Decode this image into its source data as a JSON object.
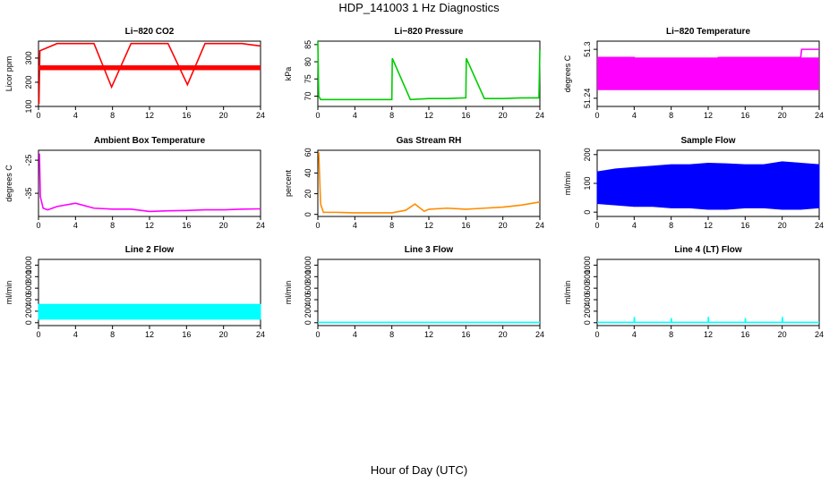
{
  "title": "HDP_141003  1 Hz Diagnostics",
  "xlabel": "Hour of Day (UTC)",
  "chart_data": [
    {
      "type": "line",
      "title": "Li−820 CO2",
      "ylabel": "Licor ppm",
      "color": "#ff0000",
      "xlim": [
        0,
        24
      ],
      "ylim": [
        100,
        370
      ],
      "xticks": [
        0,
        4,
        8,
        12,
        16,
        20,
        24
      ],
      "yticks": [
        100,
        200,
        300
      ],
      "band": [
        250,
        270
      ],
      "series": [
        {
          "x": [
            0.05,
            0.15,
            2.0,
            4.0,
            6.0,
            7.9,
            10.0,
            12.0,
            14.0,
            16.1,
            18.0,
            20.0,
            22.0,
            24.0
          ],
          "y": [
            110,
            330,
            360,
            360,
            360,
            180,
            360,
            360,
            360,
            190,
            360,
            360,
            360,
            350
          ]
        }
      ]
    },
    {
      "type": "line",
      "title": "Li−820 Pressure",
      "ylabel": "kPa",
      "color": "#00cc00",
      "xlim": [
        0,
        24
      ],
      "ylim": [
        67,
        86
      ],
      "xticks": [
        0,
        4,
        8,
        12,
        16,
        20,
        24
      ],
      "yticks": [
        70,
        75,
        80,
        85
      ],
      "series": [
        {
          "x": [
            0.0,
            0.1,
            0.3,
            2,
            4,
            6,
            8,
            8.05,
            10,
            12,
            14,
            16,
            16.05,
            18,
            20,
            22,
            23.9,
            24.0
          ],
          "y": [
            86,
            70,
            69,
            69,
            69,
            69,
            69,
            81,
            69,
            69.3,
            69.3,
            69.5,
            81,
            69.3,
            69.3,
            69.5,
            69.5,
            83.5
          ]
        }
      ]
    },
    {
      "type": "line",
      "title": "Li−820 Temperature",
      "ylabel": "degrees C",
      "color": "#ff00ff",
      "xlim": [
        0,
        24
      ],
      "ylim": [
        51.23,
        51.31
      ],
      "xticks": [
        0,
        4,
        8,
        12,
        16,
        20,
        24
      ],
      "yticks": [
        51.24,
        51.3
      ],
      "band": [
        51.25,
        51.29
      ],
      "series": [
        {
          "x": [
            0,
            4,
            4.1,
            13,
            13.1,
            22,
            22.1,
            24
          ],
          "y": [
            51.29,
            51.29,
            51.28,
            51.28,
            51.29,
            51.29,
            51.3,
            51.3
          ]
        }
      ]
    },
    {
      "type": "line",
      "title": "Ambient Box Temperature",
      "ylabel": "degrees C",
      "color": "#ff00ff",
      "xlim": [
        0,
        24
      ],
      "ylim": [
        -42,
        -22
      ],
      "xticks": [
        0,
        4,
        8,
        12,
        16,
        20,
        24
      ],
      "yticks": [
        -35,
        -25
      ],
      "series": [
        {
          "x": [
            0.1,
            0.2,
            0.5,
            1,
            2,
            4,
            6,
            8,
            10,
            12,
            14,
            16,
            18,
            20,
            22,
            24
          ],
          "y": [
            -23,
            -36,
            -39.5,
            -40,
            -39,
            -38,
            -39.5,
            -39.8,
            -39.8,
            -40.5,
            -40.3,
            -40.2,
            -40,
            -40,
            -39.8,
            -39.7
          ]
        }
      ]
    },
    {
      "type": "line",
      "title": "Gas Stream RH",
      "ylabel": "percent",
      "color": "#ff8c00",
      "xlim": [
        0,
        24
      ],
      "ylim": [
        -2,
        62
      ],
      "xticks": [
        0,
        4,
        8,
        12,
        16,
        20,
        24
      ],
      "yticks": [
        0,
        20,
        40,
        60
      ],
      "series": [
        {
          "x": [
            0.1,
            0.3,
            0.6,
            2,
            4,
            6,
            8,
            9.5,
            10.5,
            11.5,
            12,
            14,
            16,
            18,
            20,
            22,
            24
          ],
          "y": [
            60,
            10,
            2,
            2,
            1.5,
            1.5,
            1.5,
            4,
            10,
            3,
            5,
            6,
            5,
            6,
            7,
            9,
            12
          ]
        }
      ]
    },
    {
      "type": "area",
      "title": "Sample Flow",
      "ylabel": "ml/min",
      "color": "#0000ff",
      "xlim": [
        0,
        24
      ],
      "ylim": [
        -15,
        215
      ],
      "xticks": [
        0,
        4,
        8,
        12,
        16,
        20,
        24
      ],
      "yticks": [
        0,
        100,
        200
      ],
      "series": [
        {
          "name": "upper",
          "x": [
            0,
            2,
            4,
            6,
            8,
            10,
            12,
            14,
            16,
            18,
            20,
            22,
            24
          ],
          "y": [
            140,
            150,
            155,
            160,
            165,
            165,
            170,
            168,
            165,
            165,
            175,
            170,
            165
          ]
        },
        {
          "name": "lower",
          "x": [
            0,
            2,
            4,
            6,
            8,
            10,
            12,
            14,
            16,
            18,
            20,
            22,
            24
          ],
          "y": [
            30,
            25,
            20,
            20,
            15,
            15,
            10,
            10,
            15,
            15,
            10,
            10,
            15
          ]
        }
      ]
    },
    {
      "type": "area",
      "title": "Line 2 Flow",
      "ylabel": "ml/min",
      "color": "#00ffff",
      "xlim": [
        0,
        24
      ],
      "ylim": [
        -50,
        1100
      ],
      "xticks": [
        0,
        4,
        8,
        12,
        16,
        20,
        24
      ],
      "yticks": [
        0,
        200,
        400,
        600,
        800,
        1000
      ],
      "series": [
        {
          "name": "upper",
          "x": [
            0,
            4,
            8,
            12,
            16,
            20,
            24
          ],
          "y": [
            320,
            320,
            320,
            320,
            320,
            320,
            320
          ]
        },
        {
          "name": "lower",
          "x": [
            0,
            4,
            8,
            12,
            16,
            20,
            24
          ],
          "y": [
            60,
            60,
            60,
            60,
            60,
            60,
            60
          ]
        }
      ]
    },
    {
      "type": "line",
      "title": "Line 3 Flow",
      "ylabel": "ml/min",
      "color": "#00ffff",
      "xlim": [
        0,
        24
      ],
      "ylim": [
        -50,
        1100
      ],
      "xticks": [
        0,
        4,
        8,
        12,
        16,
        20,
        24
      ],
      "yticks": [
        0,
        200,
        400,
        600,
        800,
        1000
      ],
      "series": [
        {
          "x": [
            0,
            24
          ],
          "y": [
            5,
            5
          ]
        }
      ]
    },
    {
      "type": "line",
      "title": "Line 4 (LT) Flow",
      "ylabel": "ml/min",
      "color": "#00ffff",
      "xlim": [
        0,
        24
      ],
      "ylim": [
        -50,
        1100
      ],
      "xticks": [
        0,
        4,
        8,
        12,
        16,
        20,
        24
      ],
      "yticks": [
        0,
        200,
        400,
        600,
        800,
        1000
      ],
      "series": [
        {
          "x": [
            0,
            4,
            4.02,
            4.05,
            8,
            8.02,
            8.05,
            12,
            12.02,
            12.05,
            16,
            16.02,
            16.05,
            20,
            20.02,
            20.05,
            24
          ],
          "y": [
            5,
            5,
            100,
            5,
            5,
            80,
            5,
            5,
            100,
            5,
            5,
            80,
            5,
            5,
            100,
            5,
            5
          ]
        }
      ]
    }
  ]
}
